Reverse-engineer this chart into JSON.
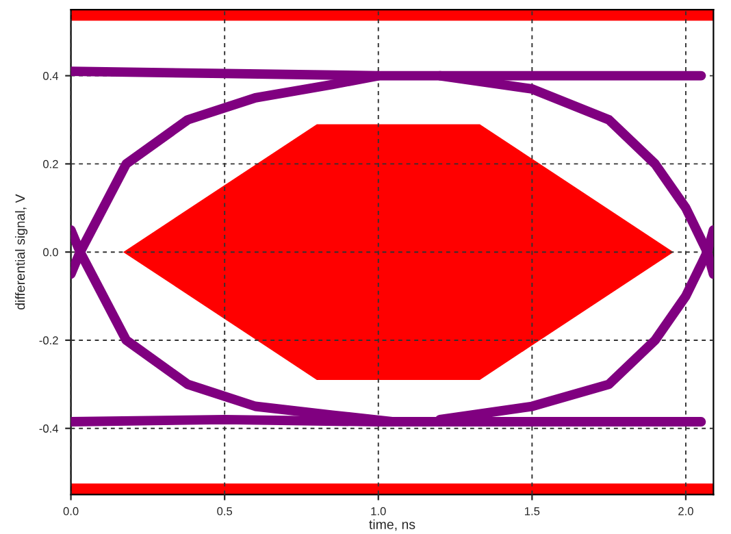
{
  "chart_data": {
    "type": "line",
    "xlabel": "time, ns",
    "ylabel": "differential signal, V",
    "xlim": [
      0,
      2.09
    ],
    "ylim": [
      -0.55,
      0.55
    ],
    "xticks": [
      {
        "value": 0,
        "label": "0.0"
      },
      0.5,
      {
        "value": 1,
        "label": "1.0"
      },
      1.5,
      {
        "value": 2,
        "label": "2.0"
      }
    ],
    "yticks": [
      -0.4,
      -0.2,
      {
        "value": 0,
        "label": "0.0"
      },
      0.2,
      0.4
    ],
    "grid": true,
    "line_style": "solid",
    "series": [
      {
        "type": "area",
        "color": "#ff0000",
        "x": [
          0.17,
          0.8,
          1.33,
          1.96,
          1.33,
          0.8,
          0.17
        ],
        "values": [
          0,
          0.29,
          0.29,
          0,
          -0.29,
          -0.29,
          0
        ]
      },
      {
        "color": "#800080",
        "x": [
          0,
          0.5,
          1.0,
          1.5,
          2.05
        ],
        "values": [
          0.41,
          0.405,
          0.4,
          0.4,
          0.4
        ]
      },
      {
        "color": "#800080",
        "x": [
          0,
          0.5,
          1.0,
          1.5,
          2.05
        ],
        "values": [
          -0.385,
          -0.38,
          -0.385,
          -0.385,
          -0.385
        ]
      },
      {
        "color": "#800080",
        "x": [
          0,
          0.03,
          0.18,
          0.38,
          0.6,
          0.85,
          1.0
        ],
        "values": [
          -0.05,
          0,
          0.2,
          0.3,
          0.35,
          0.38,
          0.4
        ]
      },
      {
        "color": "#800080",
        "x": [
          0,
          0.03,
          0.18,
          0.38,
          0.6,
          0.85,
          1.05
        ],
        "values": [
          0.05,
          0,
          -0.2,
          -0.3,
          -0.35,
          -0.37,
          -0.385
        ]
      },
      {
        "color": "#800080",
        "x": [
          1.2,
          1.5,
          1.75,
          1.9,
          2.0,
          2.07,
          2.09
        ],
        "values": [
          0.4,
          0.37,
          0.3,
          0.2,
          0.1,
          0,
          -0.05
        ]
      },
      {
        "color": "#800080",
        "x": [
          1.2,
          1.5,
          1.75,
          1.9,
          2.0,
          2.07,
          2.09
        ],
        "values": [
          -0.38,
          -0.35,
          -0.3,
          -0.2,
          -0.1,
          0,
          0.05
        ]
      }
    ],
    "bands": [
      {
        "axis": "y",
        "from": 0.525,
        "to": 0.55,
        "color": "#ff0000"
      },
      {
        "axis": "y",
        "from": -0.55,
        "to": -0.525,
        "color": "#ff0000"
      }
    ]
  }
}
